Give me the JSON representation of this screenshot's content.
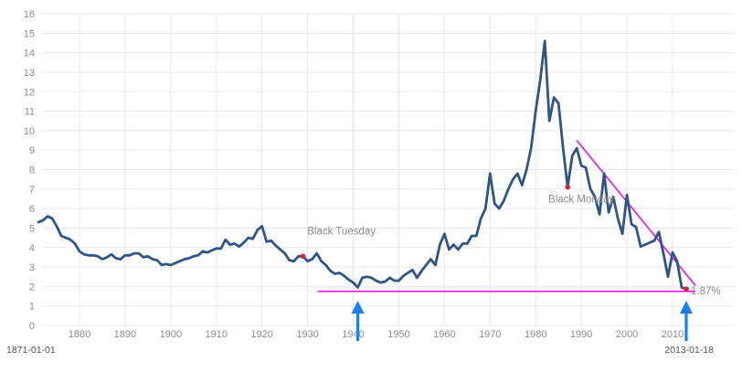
{
  "chart_data": {
    "type": "line",
    "title": "",
    "xlabel": "",
    "ylabel": "",
    "xlim": [
      1871,
      2015
    ],
    "ylim": [
      0,
      16
    ],
    "x_ticks": [
      1880,
      1890,
      1900,
      1910,
      1920,
      1930,
      1940,
      1950,
      1960,
      1970,
      1980,
      1990,
      2000,
      2010
    ],
    "y_ticks": [
      0,
      1,
      2,
      3,
      4,
      5,
      6,
      7,
      8,
      9,
      10,
      11,
      12,
      13,
      14,
      15,
      16
    ],
    "grid": true,
    "legend": "none",
    "range_start_label": "1871-01-01",
    "range_end_label": "2013-01-18",
    "series": [
      {
        "color": "#2e5585",
        "x": [
          1871,
          1872,
          1873,
          1874,
          1875,
          1876,
          1877,
          1878,
          1879,
          1880,
          1881,
          1882,
          1883,
          1884,
          1885,
          1886,
          1887,
          1888,
          1889,
          1890,
          1891,
          1892,
          1893,
          1894,
          1895,
          1896,
          1897,
          1898,
          1899,
          1900,
          1901,
          1902,
          1903,
          1904,
          1905,
          1906,
          1907,
          1908,
          1909,
          1910,
          1911,
          1912,
          1913,
          1914,
          1915,
          1916,
          1917,
          1918,
          1919,
          1920,
          1921,
          1922,
          1923,
          1924,
          1925,
          1926,
          1927,
          1928,
          1929,
          1930,
          1931,
          1932,
          1933,
          1934,
          1935,
          1936,
          1937,
          1938,
          1939,
          1940,
          1941,
          1942,
          1943,
          1944,
          1945,
          1946,
          1947,
          1948,
          1949,
          1950,
          1951,
          1952,
          1953,
          1954,
          1955,
          1956,
          1957,
          1958,
          1959,
          1960,
          1961,
          1962,
          1963,
          1964,
          1965,
          1966,
          1967,
          1968,
          1969,
          1970,
          1971,
          1972,
          1973,
          1974,
          1975,
          1976,
          1977,
          1978,
          1979,
          1980,
          1981,
          1982,
          1983,
          1984,
          1985,
          1986,
          1987,
          1988,
          1989,
          1990,
          1991,
          1992,
          1993,
          1994,
          1995,
          1996,
          1997,
          1998,
          1999,
          2000,
          2001,
          2002,
          2003,
          2004,
          2005,
          2006,
          2007,
          2008,
          2009,
          2010,
          2011,
          2012,
          2013
        ],
        "values": [
          5.3,
          5.4,
          5.6,
          5.5,
          5.1,
          4.6,
          4.5,
          4.4,
          4.2,
          3.8,
          3.65,
          3.6,
          3.6,
          3.55,
          3.4,
          3.5,
          3.65,
          3.45,
          3.4,
          3.6,
          3.6,
          3.7,
          3.7,
          3.5,
          3.55,
          3.4,
          3.35,
          3.1,
          3.15,
          3.1,
          3.2,
          3.3,
          3.4,
          3.45,
          3.55,
          3.6,
          3.8,
          3.75,
          3.85,
          3.95,
          3.95,
          4.4,
          4.15,
          4.2,
          4.05,
          4.25,
          4.5,
          4.45,
          4.9,
          5.1,
          4.3,
          4.35,
          4.1,
          3.9,
          3.7,
          3.35,
          3.3,
          3.55,
          3.55,
          3.3,
          3.4,
          3.7,
          3.3,
          3.1,
          2.8,
          2.65,
          2.7,
          2.55,
          2.35,
          2.2,
          1.95,
          2.45,
          2.5,
          2.45,
          2.3,
          2.2,
          2.25,
          2.45,
          2.3,
          2.3,
          2.55,
          2.7,
          2.85,
          2.45,
          2.8,
          3.1,
          3.4,
          3.1,
          4.15,
          4.7,
          3.9,
          4.15,
          3.9,
          4.2,
          4.2,
          4.6,
          4.6,
          5.5,
          6.0,
          7.8,
          6.25,
          6.0,
          6.4,
          7.0,
          7.5,
          7.8,
          7.2,
          8.0,
          9.1,
          11.0,
          12.6,
          14.6,
          10.5,
          11.7,
          11.4,
          9.1,
          7.1,
          8.7,
          9.1,
          8.2,
          8.1,
          7.0,
          6.6,
          5.7,
          7.8,
          5.8,
          6.6,
          5.5,
          4.7,
          6.7,
          5.2,
          5.05,
          4.05,
          4.15,
          4.25,
          4.35,
          4.8,
          3.7,
          2.5,
          3.75,
          3.3,
          1.95,
          1.87
        ]
      }
    ],
    "markers": [
      {
        "x": 1929,
        "y": 3.55,
        "label": "Black Tuesday",
        "color": "#e0203a"
      },
      {
        "x": 1987,
        "y": 7.1,
        "label": "Black Monday",
        "color": "#e0203a"
      },
      {
        "x": 2013,
        "y": 1.87,
        "label": "",
        "color": "#e0203a"
      }
    ],
    "last_value_label": "1.87%",
    "trend_lines": [
      {
        "color": "#ee10ee",
        "from": [
          1932.2,
          1.75
        ],
        "to": [
          2015,
          1.75
        ]
      },
      {
        "color": "#ee10ee",
        "from": [
          1989,
          9.5
        ],
        "to": [
          2015,
          2.05
        ]
      }
    ],
    "arrows": [
      {
        "color": "#1a7ff0",
        "x": 1941,
        "direction": "up"
      },
      {
        "color": "#1a7ff0",
        "x": 2013,
        "direction": "up"
      }
    ]
  }
}
